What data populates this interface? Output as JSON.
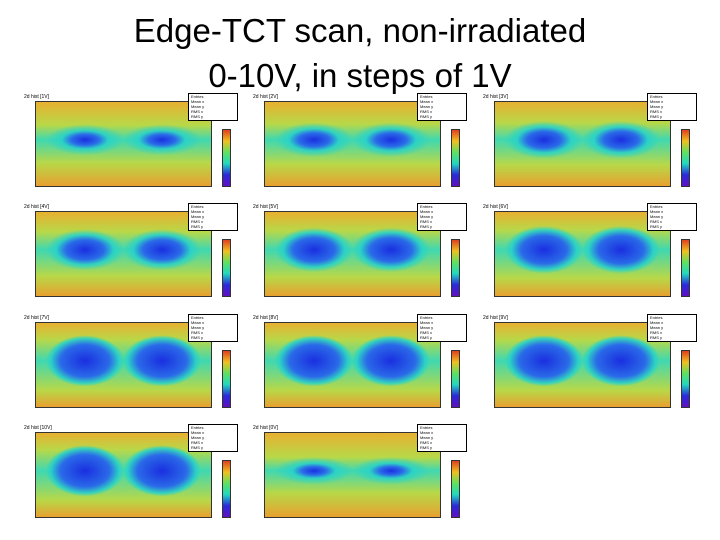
{
  "title": {
    "line1": "Edge-TCT scan, non-irradiated",
    "line2": "0-10V, in steps of 1V"
  },
  "panels": [
    {
      "label": "2d hist [1V]",
      "voltage": 1
    },
    {
      "label": "2d hist [2V]",
      "voltage": 2
    },
    {
      "label": "2d hist [3V]",
      "voltage": 3
    },
    {
      "label": "2d hist [4V]",
      "voltage": 4
    },
    {
      "label": "2d hist [5V]",
      "voltage": 5
    },
    {
      "label": "2d hist [6V]",
      "voltage": 6
    },
    {
      "label": "2d hist [7V]",
      "voltage": 7
    },
    {
      "label": "2d hist [8V]",
      "voltage": 8
    },
    {
      "label": "2d hist [9V]",
      "voltage": 9
    },
    {
      "label": "2d hist [10V]",
      "voltage": 10
    },
    {
      "label": "2d hist [0V]",
      "voltage": 0
    }
  ],
  "stats_labels": [
    "Entries",
    "Mean x",
    "Mean y",
    "RMS x",
    "RMS y"
  ],
  "colors": {
    "low": "#2a2ad8",
    "mid": "#22d8c0",
    "high": "#f0c020",
    "top": "#e04020"
  }
}
